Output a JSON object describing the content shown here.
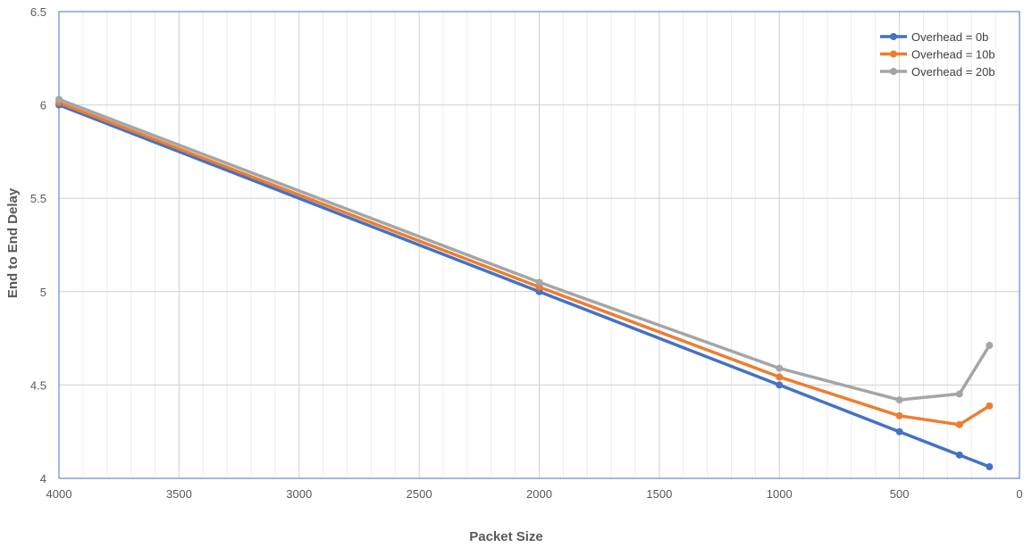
{
  "chart_data": {
    "type": "line",
    "xlabel": "Packet Size",
    "ylabel": "End to End Delay",
    "xlim": [
      4000,
      0
    ],
    "ylim": [
      4,
      6.5
    ],
    "x_reversed": true,
    "x_ticks": [
      4000,
      3500,
      3000,
      2500,
      2000,
      1500,
      1000,
      500,
      0
    ],
    "y_ticks": [
      4,
      4.5,
      5,
      5.5,
      6,
      6.5
    ],
    "x_tick_labels": [
      "4000",
      "3500",
      "3000",
      "2500",
      "2000",
      "1500",
      "1000",
      "500",
      "0"
    ],
    "y_tick_labels": [
      "4",
      "4.5",
      "5",
      "5.5",
      "6",
      "6.5"
    ],
    "grid": true,
    "legend_position": "top-right",
    "x": [
      4000,
      2000,
      1000,
      500,
      250,
      125
    ],
    "series": [
      {
        "name": "Overhead = 0b",
        "color": "#4472C4",
        "values": [
          6.0,
          5.0,
          4.5,
          4.25,
          4.125,
          4.062
        ]
      },
      {
        "name": "Overhead = 10b",
        "color": "#ED7D31",
        "values": [
          6.012,
          5.025,
          4.543,
          4.335,
          4.288,
          4.388
        ]
      },
      {
        "name": "Overhead = 20b",
        "color": "#A5A5A5",
        "values": [
          6.03,
          5.05,
          4.59,
          4.42,
          4.452,
          4.712
        ]
      }
    ]
  }
}
